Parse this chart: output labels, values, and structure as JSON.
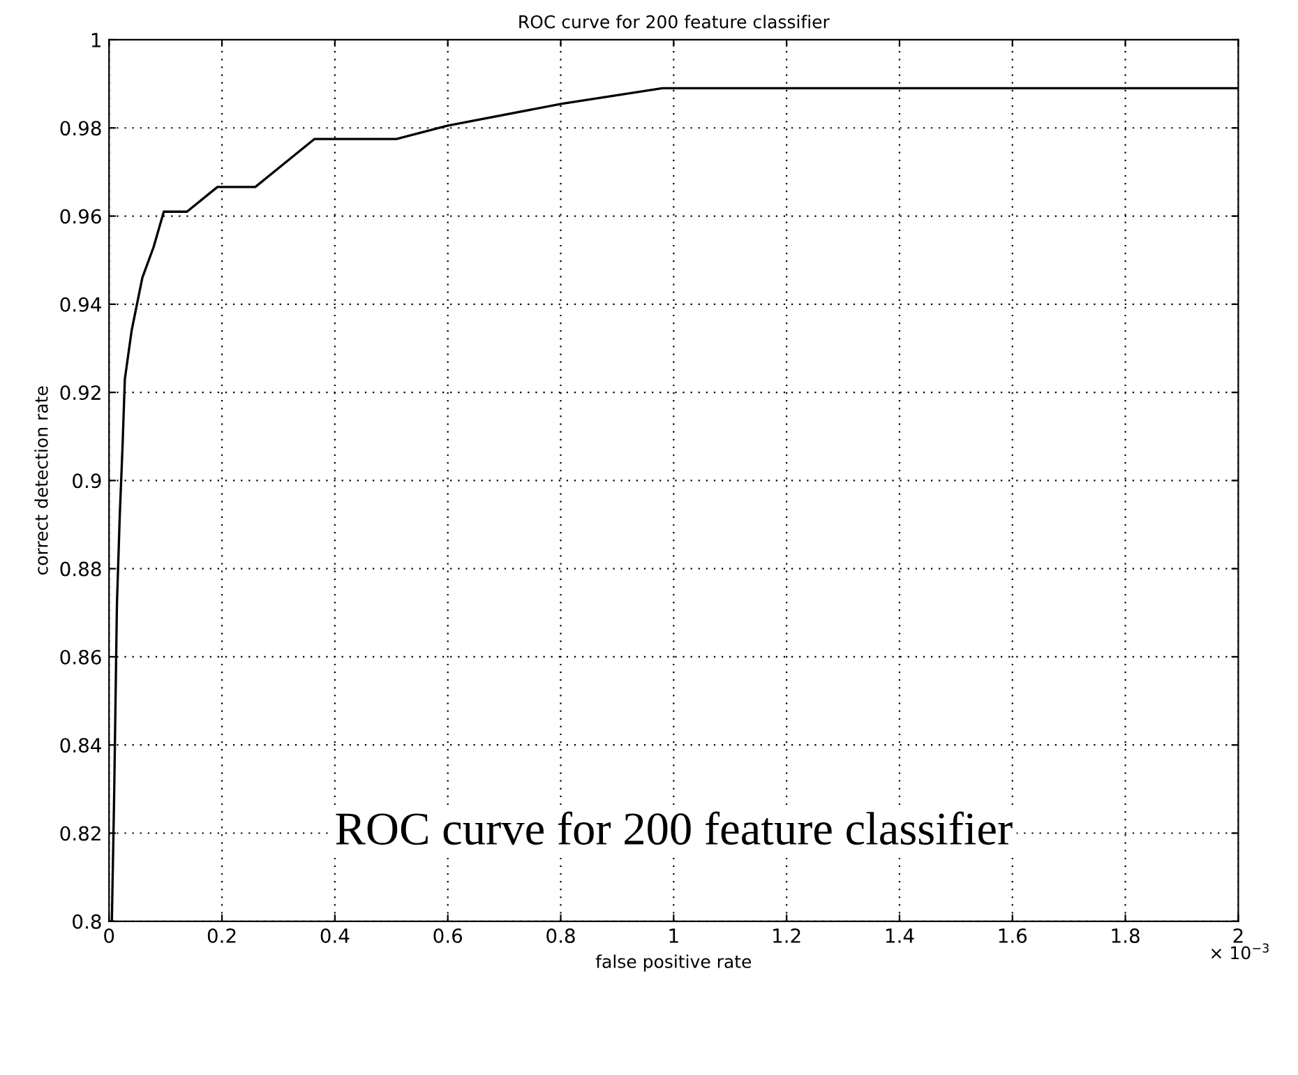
{
  "chart_data": {
    "type": "line",
    "title": "ROC curve for 200 feature classifier",
    "xlabel": "false positive rate",
    "ylabel": "correct detection rate",
    "x": [
      0.005,
      0.006,
      0.009,
      0.014,
      0.019,
      0.024,
      0.028,
      0.04,
      0.059,
      0.079,
      0.097,
      0.138,
      0.192,
      0.259,
      0.364,
      0.509,
      0.599,
      0.802,
      0.98,
      2
    ],
    "series": [
      {
        "color": "#000000",
        "values": [
          0.8,
          0.807,
          0.828,
          0.872,
          0.892,
          0.908,
          0.923,
          0.934,
          0.946,
          0.953,
          0.961,
          0.961,
          0.9666,
          0.9666,
          0.9775,
          0.9775,
          0.9805,
          0.9855,
          0.989,
          0.989
        ]
      }
    ],
    "xlim": [
      0,
      2
    ],
    "ylim": [
      0.8,
      1
    ],
    "xticks": [
      0,
      0.2,
      0.4,
      0.6,
      0.8,
      1,
      1.2,
      1.4,
      1.6,
      1.8,
      2
    ],
    "yticks": [
      0.8,
      0.82,
      0.84,
      0.86,
      0.88,
      0.9,
      0.92,
      0.94,
      0.96,
      0.98,
      1
    ],
    "grid": true,
    "line_style": "solid",
    "marker": "none",
    "annotations": [
      "× 10$^{−3}$",
      "ROC curve for 200 feature classifier"
    ]
  }
}
